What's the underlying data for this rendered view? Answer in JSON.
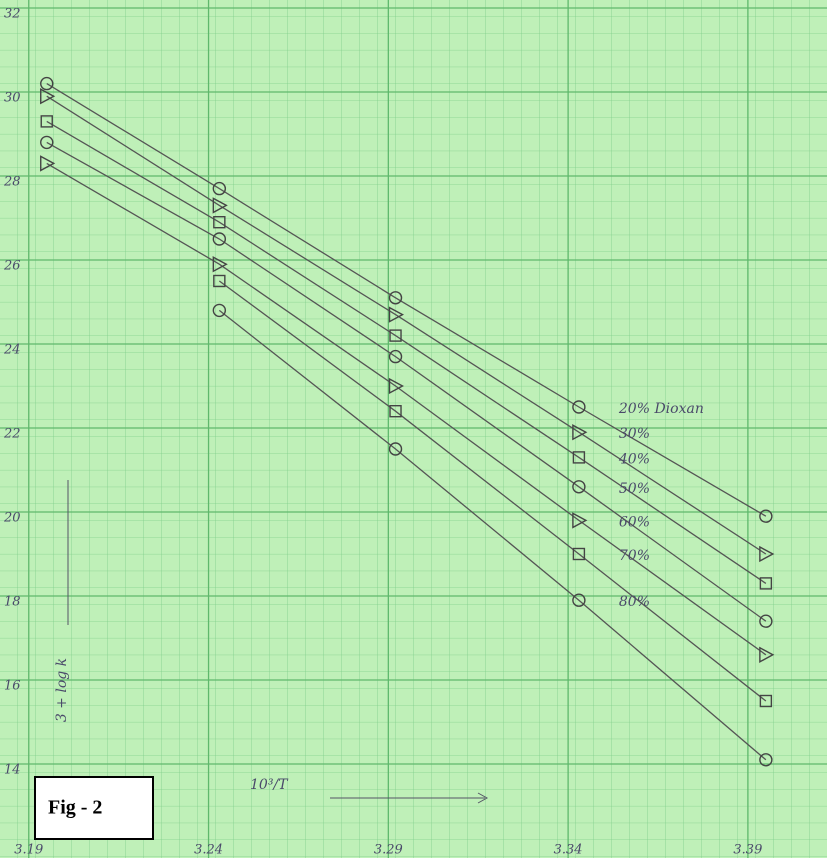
{
  "chart_data": {
    "type": "line",
    "fig_label": "Fig - 2",
    "x_label": "10³/T",
    "y_label": "3 + log k",
    "x": [
      3.195,
      3.243,
      3.292,
      3.343,
      3.395
    ],
    "xlim": [
      3.182,
      3.412
    ],
    "ylim": [
      12,
      32
    ],
    "xticks": [
      3.19,
      3.24,
      3.29,
      3.34,
      3.39
    ],
    "yticks": [
      14,
      16,
      18,
      20,
      22,
      24,
      26,
      28,
      30,
      32
    ],
    "grid": true,
    "series": [
      {
        "name": "20% Dioxan",
        "color": "#555",
        "marker": "circle",
        "values": [
          30.2,
          27.7,
          25.1,
          22.5,
          19.9
        ]
      },
      {
        "name": "30%",
        "color": "#555",
        "marker": "triangle",
        "values": [
          29.9,
          27.3,
          24.7,
          21.9,
          19.0
        ]
      },
      {
        "name": "40%",
        "color": "#555",
        "marker": "square",
        "values": [
          29.3,
          26.9,
          24.2,
          21.3,
          18.3
        ]
      },
      {
        "name": "50%",
        "color": "#555",
        "marker": "circle",
        "values": [
          28.8,
          26.5,
          23.7,
          20.6,
          17.4
        ]
      },
      {
        "name": "60%",
        "color": "#555",
        "marker": "triangle",
        "values": [
          28.3,
          25.9,
          23.0,
          19.8,
          16.6
        ]
      },
      {
        "name": "70%",
        "color": "#555",
        "marker": "square",
        "values": [
          null,
          25.5,
          22.4,
          19.0,
          15.5
        ]
      },
      {
        "name": "80%",
        "color": "#555",
        "marker": "circle",
        "values": [
          null,
          24.8,
          21.5,
          17.9,
          14.1
        ]
      }
    ]
  }
}
